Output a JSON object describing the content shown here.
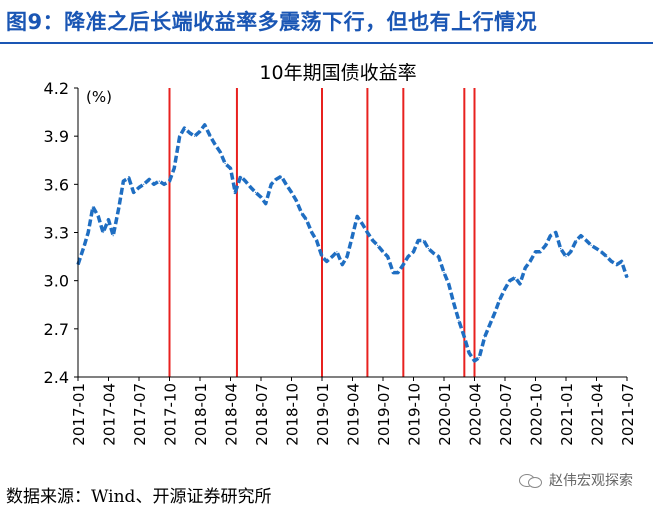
{
  "figure": {
    "title": "图9：降准之后长端收益率多震荡下行，但也有上行情况",
    "source": "数据来源：Wind、开源证券研究所",
    "watermark": "赵伟宏观探索",
    "title_color": "#1a56b4"
  },
  "chart_data": {
    "type": "line",
    "title": "10年期国债收益率",
    "unit_label": "(%)",
    "ylim": [
      2.4,
      4.2
    ],
    "yticks": [
      "2.4",
      "2.7",
      "3.0",
      "3.3",
      "3.6",
      "3.9",
      "4.2"
    ],
    "xticks": [
      "2017-01",
      "2017-04",
      "2017-07",
      "2017-10",
      "2018-01",
      "2018-04",
      "2018-07",
      "2018-10",
      "2019-01",
      "2019-04",
      "2019-07",
      "2019-10",
      "2020-01",
      "2020-04",
      "2020-07",
      "2020-10",
      "2021-01",
      "2021-04",
      "2021-07"
    ],
    "grid": false,
    "line_color": "#1f6ec2",
    "line_style": "dashed",
    "marker_color": "#e8211f",
    "x_start": "2017-01",
    "x_end": "2021-07",
    "series": [
      {
        "name": "",
        "points": [
          [
            "2017-01",
            3.1
          ],
          [
            "2017-01-20",
            3.22
          ],
          [
            "2017-02",
            3.3
          ],
          [
            "2017-02-15",
            3.46
          ],
          [
            "2017-03",
            3.4
          ],
          [
            "2017-03-15",
            3.3
          ],
          [
            "2017-04",
            3.38
          ],
          [
            "2017-04-15",
            3.28
          ],
          [
            "2017-05",
            3.45
          ],
          [
            "2017-05-15",
            3.62
          ],
          [
            "2017-06",
            3.64
          ],
          [
            "2017-06-15",
            3.55
          ],
          [
            "2017-07",
            3.58
          ],
          [
            "2017-07-15",
            3.6
          ],
          [
            "2017-08",
            3.63
          ],
          [
            "2017-08-15",
            3.6
          ],
          [
            "2017-09",
            3.62
          ],
          [
            "2017-09-15",
            3.6
          ],
          [
            "2017-10",
            3.62
          ],
          [
            "2017-10-15",
            3.7
          ],
          [
            "2017-11",
            3.9
          ],
          [
            "2017-11-15",
            3.95
          ],
          [
            "2017-12",
            3.92
          ],
          [
            "2017-12-15",
            3.9
          ],
          [
            "2018-01",
            3.93
          ],
          [
            "2018-01-15",
            3.97
          ],
          [
            "2018-02",
            3.9
          ],
          [
            "2018-02-15",
            3.85
          ],
          [
            "2018-03",
            3.8
          ],
          [
            "2018-03-15",
            3.73
          ],
          [
            "2018-04",
            3.7
          ],
          [
            "2018-04-15",
            3.55
          ],
          [
            "2018-05",
            3.65
          ],
          [
            "2018-05-15",
            3.62
          ],
          [
            "2018-06",
            3.58
          ],
          [
            "2018-06-15",
            3.55
          ],
          [
            "2018-07",
            3.52
          ],
          [
            "2018-07-15",
            3.48
          ],
          [
            "2018-08",
            3.6
          ],
          [
            "2018-08-15",
            3.63
          ],
          [
            "2018-09",
            3.65
          ],
          [
            "2018-09-15",
            3.6
          ],
          [
            "2018-10",
            3.55
          ],
          [
            "2018-10-15",
            3.5
          ],
          [
            "2018-11",
            3.42
          ],
          [
            "2018-11-15",
            3.38
          ],
          [
            "2018-12",
            3.3
          ],
          [
            "2018-12-15",
            3.25
          ],
          [
            "2019-01",
            3.15
          ],
          [
            "2019-01-15",
            3.12
          ],
          [
            "2019-02",
            3.15
          ],
          [
            "2019-02-15",
            3.18
          ],
          [
            "2019-03",
            3.1
          ],
          [
            "2019-03-15",
            3.15
          ],
          [
            "2019-04",
            3.28
          ],
          [
            "2019-04-15",
            3.4
          ],
          [
            "2019-05",
            3.35
          ],
          [
            "2019-05-15",
            3.3
          ],
          [
            "2019-06",
            3.25
          ],
          [
            "2019-06-15",
            3.22
          ],
          [
            "2019-07",
            3.18
          ],
          [
            "2019-07-15",
            3.15
          ],
          [
            "2019-08",
            3.05
          ],
          [
            "2019-08-15",
            3.05
          ],
          [
            "2019-09",
            3.1
          ],
          [
            "2019-09-15",
            3.15
          ],
          [
            "2019-10",
            3.18
          ],
          [
            "2019-10-15",
            3.25
          ],
          [
            "2019-11",
            3.25
          ],
          [
            "2019-11-15",
            3.2
          ],
          [
            "2019-12",
            3.17
          ],
          [
            "2019-12-15",
            3.15
          ],
          [
            "2020-01",
            3.05
          ],
          [
            "2020-01-15",
            2.98
          ],
          [
            "2020-02",
            2.85
          ],
          [
            "2020-02-15",
            2.75
          ],
          [
            "2020-03",
            2.65
          ],
          [
            "2020-03-15",
            2.55
          ],
          [
            "2020-04",
            2.5
          ],
          [
            "2020-04-15",
            2.52
          ],
          [
            "2020-05",
            2.65
          ],
          [
            "2020-05-15",
            2.72
          ],
          [
            "2020-06",
            2.8
          ],
          [
            "2020-06-15",
            2.88
          ],
          [
            "2020-07",
            2.95
          ],
          [
            "2020-07-15",
            3.0
          ],
          [
            "2020-08",
            3.02
          ],
          [
            "2020-08-15",
            2.98
          ],
          [
            "2020-09",
            3.08
          ],
          [
            "2020-09-15",
            3.12
          ],
          [
            "2020-10",
            3.18
          ],
          [
            "2020-10-15",
            3.18
          ],
          [
            "2020-11",
            3.22
          ],
          [
            "2020-11-15",
            3.28
          ],
          [
            "2020-12",
            3.3
          ],
          [
            "2020-12-15",
            3.2
          ],
          [
            "2021-01",
            3.15
          ],
          [
            "2021-01-15",
            3.18
          ],
          [
            "2021-02",
            3.25
          ],
          [
            "2021-02-15",
            3.28
          ],
          [
            "2021-03",
            3.25
          ],
          [
            "2021-03-15",
            3.22
          ],
          [
            "2021-04",
            3.2
          ],
          [
            "2021-04-15",
            3.18
          ],
          [
            "2021-05",
            3.15
          ],
          [
            "2021-05-15",
            3.12
          ],
          [
            "2021-06",
            3.1
          ],
          [
            "2021-06-15",
            3.12
          ],
          [
            "2021-07",
            3.02
          ]
        ]
      }
    ],
    "markers": [
      "2017-10",
      "2018-04-20",
      "2019-01",
      "2019-05-15",
      "2019-09",
      "2020-03",
      "2020-04"
    ]
  }
}
